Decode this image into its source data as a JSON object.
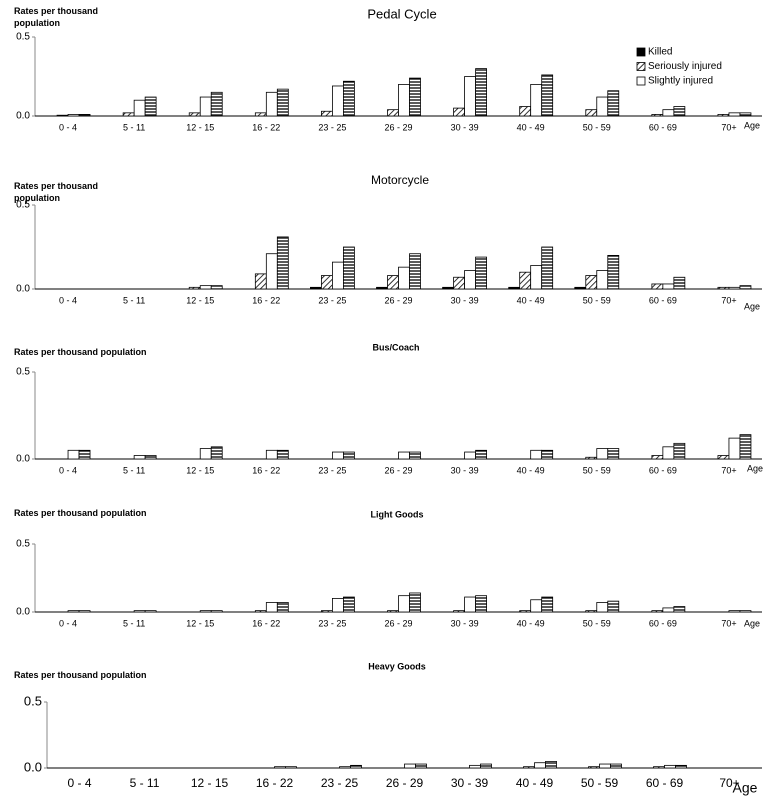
{
  "chart_data": [
    {
      "type": "bar",
      "title": "Pedal Cycle",
      "y_label": "Rates per thousand population",
      "x_label": "Age",
      "categories": [
        "0 - 4",
        "5 - 11",
        "12 - 15",
        "16 - 22",
        "23 - 25",
        "26 - 29",
        "30 - 39",
        "40 - 49",
        "50 - 59",
        "60 - 69",
        "70+"
      ],
      "ylim": [
        0,
        0.5
      ],
      "yticks": [
        {
          "value": 0,
          "label": "0.0"
        },
        0.5
      ],
      "legend": "top-right",
      "series": [
        {
          "name": "Killed",
          "color": "#000000",
          "pattern": "solid",
          "values": [
            0,
            0,
            0,
            0,
            0,
            0,
            0,
            0,
            0,
            0,
            0
          ]
        },
        {
          "name": "Seriously injured",
          "color": "#000000",
          "pattern": "diagonal",
          "values": [
            0.005,
            0.02,
            0.02,
            0.02,
            0.03,
            0.04,
            0.05,
            0.06,
            0.04,
            0.01,
            0.01
          ]
        },
        {
          "name": "Slightly injured",
          "color": "#ffffff",
          "pattern": "none",
          "values": [
            0.01,
            0.1,
            0.12,
            0.15,
            0.19,
            0.2,
            0.25,
            0.2,
            0.12,
            0.04,
            0.02
          ]
        },
        {
          "color": "#000000",
          "pattern": "horizontal",
          "values": [
            0.01,
            0.12,
            0.15,
            0.17,
            0.22,
            0.24,
            0.3,
            0.26,
            0.16,
            0.06,
            0.02
          ]
        }
      ]
    },
    {
      "type": "bar",
      "title": "Motorcycle",
      "y_label": "Rates per thousand population",
      "x_label": "Age",
      "categories": [
        "0 - 4",
        "5 - 11",
        "12 - 15",
        "16 - 22",
        "23 - 25",
        "26 - 29",
        "30 - 39",
        "40 - 49",
        "50 - 59",
        "60 - 69",
        "70+"
      ],
      "ylim": [
        0,
        0.5
      ],
      "yticks": [
        {
          "value": 0,
          "label": "0.0"
        },
        0.5
      ],
      "series": [
        {
          "color": "#000000",
          "pattern": "solid",
          "values": [
            0,
            0,
            0,
            0,
            0.01,
            0.01,
            0.01,
            0.01,
            0.01,
            0,
            0
          ]
        },
        {
          "color": "#000000",
          "pattern": "diagonal",
          "values": [
            0,
            0,
            0.01,
            0.09,
            0.08,
            0.08,
            0.07,
            0.1,
            0.08,
            0.03,
            0.01
          ]
        },
        {
          "color": "#ffffff",
          "pattern": "none",
          "values": [
            0,
            0,
            0.02,
            0.21,
            0.16,
            0.13,
            0.11,
            0.14,
            0.11,
            0.03,
            0.01
          ]
        },
        {
          "color": "#000000",
          "pattern": "horizontal",
          "values": [
            0,
            0,
            0.02,
            0.31,
            0.25,
            0.21,
            0.19,
            0.25,
            0.2,
            0.07,
            0.02
          ]
        }
      ]
    },
    {
      "type": "bar",
      "title": "Bus/Coach",
      "y_label": "Rates per thousand population",
      "x_label": "Age",
      "categories": [
        "0 - 4",
        "5 - 11",
        "12 - 15",
        "16 - 22",
        "23 - 25",
        "26 - 29",
        "30 - 39",
        "40 - 49",
        "50 - 59",
        "60 - 69",
        "70+"
      ],
      "ylim": [
        0,
        0.5
      ],
      "yticks": [
        {
          "value": 0,
          "label": "0.0"
        },
        0.5
      ],
      "series": [
        {
          "color": "#000000",
          "pattern": "solid",
          "values": [
            0,
            0,
            0,
            0,
            0,
            0,
            0,
            0,
            0,
            0,
            0
          ]
        },
        {
          "color": "#000000",
          "pattern": "diagonal",
          "values": [
            0,
            0,
            0,
            0,
            0,
            0,
            0,
            0,
            0.01,
            0.02,
            0.02
          ]
        },
        {
          "color": "#ffffff",
          "pattern": "none",
          "values": [
            0.05,
            0.02,
            0.06,
            0.05,
            0.04,
            0.04,
            0.04,
            0.05,
            0.06,
            0.07,
            0.12
          ]
        },
        {
          "color": "#000000",
          "pattern": "horizontal",
          "values": [
            0.05,
            0.02,
            0.07,
            0.05,
            0.04,
            0.04,
            0.05,
            0.05,
            0.06,
            0.09,
            0.14
          ]
        }
      ]
    },
    {
      "type": "bar",
      "title": "Light Goods",
      "y_label": "Rates per thousand population",
      "x_label": "Age",
      "categories": [
        "0 - 4",
        "5 - 11",
        "12 - 15",
        "16 - 22",
        "23 - 25",
        "26 - 29",
        "30 - 39",
        "40 - 49",
        "50 - 59",
        "60 - 69",
        "70+"
      ],
      "ylim": [
        0,
        0.5
      ],
      "yticks": [
        {
          "value": 0,
          "label": "0.0"
        },
        0.5
      ],
      "series": [
        {
          "color": "#000000",
          "pattern": "solid",
          "values": [
            0,
            0,
            0,
            0,
            0,
            0,
            0,
            0,
            0,
            0,
            0
          ]
        },
        {
          "color": "#000000",
          "pattern": "diagonal",
          "values": [
            0,
            0,
            0,
            0.01,
            0.01,
            0.01,
            0.01,
            0.01,
            0.01,
            0.01,
            0
          ]
        },
        {
          "color": "#ffffff",
          "pattern": "none",
          "values": [
            0.01,
            0.01,
            0.01,
            0.07,
            0.1,
            0.12,
            0.11,
            0.09,
            0.07,
            0.03,
            0.01
          ]
        },
        {
          "color": "#000000",
          "pattern": "horizontal",
          "values": [
            0.01,
            0.01,
            0.01,
            0.07,
            0.11,
            0.14,
            0.12,
            0.11,
            0.08,
            0.04,
            0.01
          ]
        }
      ]
    },
    {
      "type": "bar",
      "title": "Heavy Goods",
      "y_label": "Rates per thousand population",
      "x_label": "Age",
      "categories": [
        "0 - 4",
        "5 - 11",
        "12 - 15",
        "16 - 22",
        "23 - 25",
        "26 - 29",
        "30 - 39",
        "40 - 49",
        "50 - 59",
        "60 - 69",
        "70+"
      ],
      "ylim": [
        0,
        0.5
      ],
      "yticks": [
        {
          "value": 0,
          "label": "0.0"
        },
        0.5
      ],
      "series": [
        {
          "color": "#000000",
          "pattern": "solid",
          "values": [
            0,
            0,
            0,
            0,
            0,
            0,
            0,
            0,
            0,
            0,
            0
          ]
        },
        {
          "color": "#000000",
          "pattern": "diagonal",
          "values": [
            0,
            0,
            0,
            0,
            0,
            0,
            0,
            0.01,
            0.01,
            0.01,
            0
          ]
        },
        {
          "color": "#ffffff",
          "pattern": "none",
          "values": [
            0,
            0,
            0,
            0.01,
            0.01,
            0.03,
            0.02,
            0.04,
            0.03,
            0.02,
            0
          ]
        },
        {
          "color": "#000000",
          "pattern": "horizontal",
          "values": [
            0,
            0,
            0,
            0.01,
            0.02,
            0.03,
            0.03,
            0.05,
            0.03,
            0.02,
            0
          ]
        }
      ]
    }
  ]
}
